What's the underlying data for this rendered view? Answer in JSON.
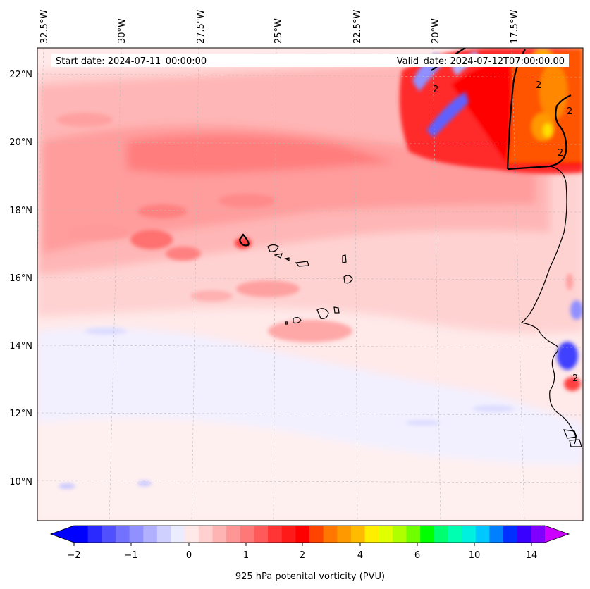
{
  "map": {
    "start_date": "Start date: 2024-07-11_00:00:00",
    "valid_date": "Valid_date: 2024-07-12T07:00:00.00",
    "lon_labels": [
      "32.5°W",
      "30°W",
      "27.5°W",
      "25°W",
      "22.5°W",
      "20°W",
      "17.5°W"
    ],
    "lat_labels": [
      "22°N",
      "20°N",
      "18°N",
      "16°N",
      "14°N",
      "12°N",
      "10°N"
    ],
    "contour_label": "2"
  },
  "colorbar": {
    "title": "925 hPa potenital vorticity (PVU)",
    "tick_labels": [
      "−2",
      "−1",
      "0",
      "1",
      "2",
      "4",
      "6",
      "10",
      "14"
    ],
    "colors": [
      "#0000ff",
      "#2a2aff",
      "#5050ff",
      "#7272ff",
      "#9090ff",
      "#b0b0ff",
      "#d0d0ff",
      "#ececff",
      "#ffe8e8",
      "#ffd0d0",
      "#ffb4b4",
      "#ff9696",
      "#ff7878",
      "#ff5a5a",
      "#ff3434",
      "#ff1a1a",
      "#ff0000",
      "#ff4400",
      "#ff7700",
      "#ff9900",
      "#ffbb00",
      "#ffee00",
      "#e0ff00",
      "#b0ff00",
      "#70ff00",
      "#00ff00",
      "#00ff70",
      "#00ffb0",
      "#00f0e0",
      "#00c8ff",
      "#0080ff",
      "#0030ff",
      "#3a00ff",
      "#8000ff"
    ],
    "under_color": "#0000ff",
    "over_color": "#cc00ff"
  }
}
